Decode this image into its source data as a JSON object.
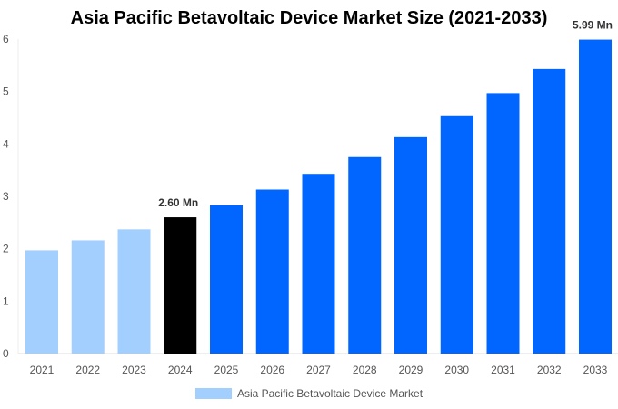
{
  "chart_data": {
    "type": "bar",
    "title": "Asia Pacific Betavoltaic Device Market Size (2021-2033)",
    "categories": [
      "2021",
      "2022",
      "2023",
      "2024",
      "2025",
      "2026",
      "2027",
      "2028",
      "2029",
      "2030",
      "2031",
      "2032",
      "2033"
    ],
    "series": [
      {
        "name": "Asia Pacific Betavoltaic Device Market",
        "values": [
          1.97,
          2.16,
          2.37,
          2.6,
          2.83,
          3.13,
          3.43,
          3.75,
          4.13,
          4.53,
          4.97,
          5.43,
          5.99
        ]
      }
    ],
    "bar_colors": [
      "#a3cfff",
      "#a3cfff",
      "#a3cfff",
      "#000000",
      "#0066ff",
      "#0066ff",
      "#0066ff",
      "#0066ff",
      "#0066ff",
      "#0066ff",
      "#0066ff",
      "#0066ff",
      "#0066ff"
    ],
    "data_labels": {
      "3": "2.60 Mn",
      "12": "5.99 Mn"
    },
    "yticks": [
      "0",
      "1",
      "2",
      "3",
      "4",
      "5",
      "6"
    ],
    "ylim": [
      0,
      6
    ],
    "xlabel": "",
    "ylabel": "",
    "grid": false,
    "legend_position": "bottom"
  }
}
